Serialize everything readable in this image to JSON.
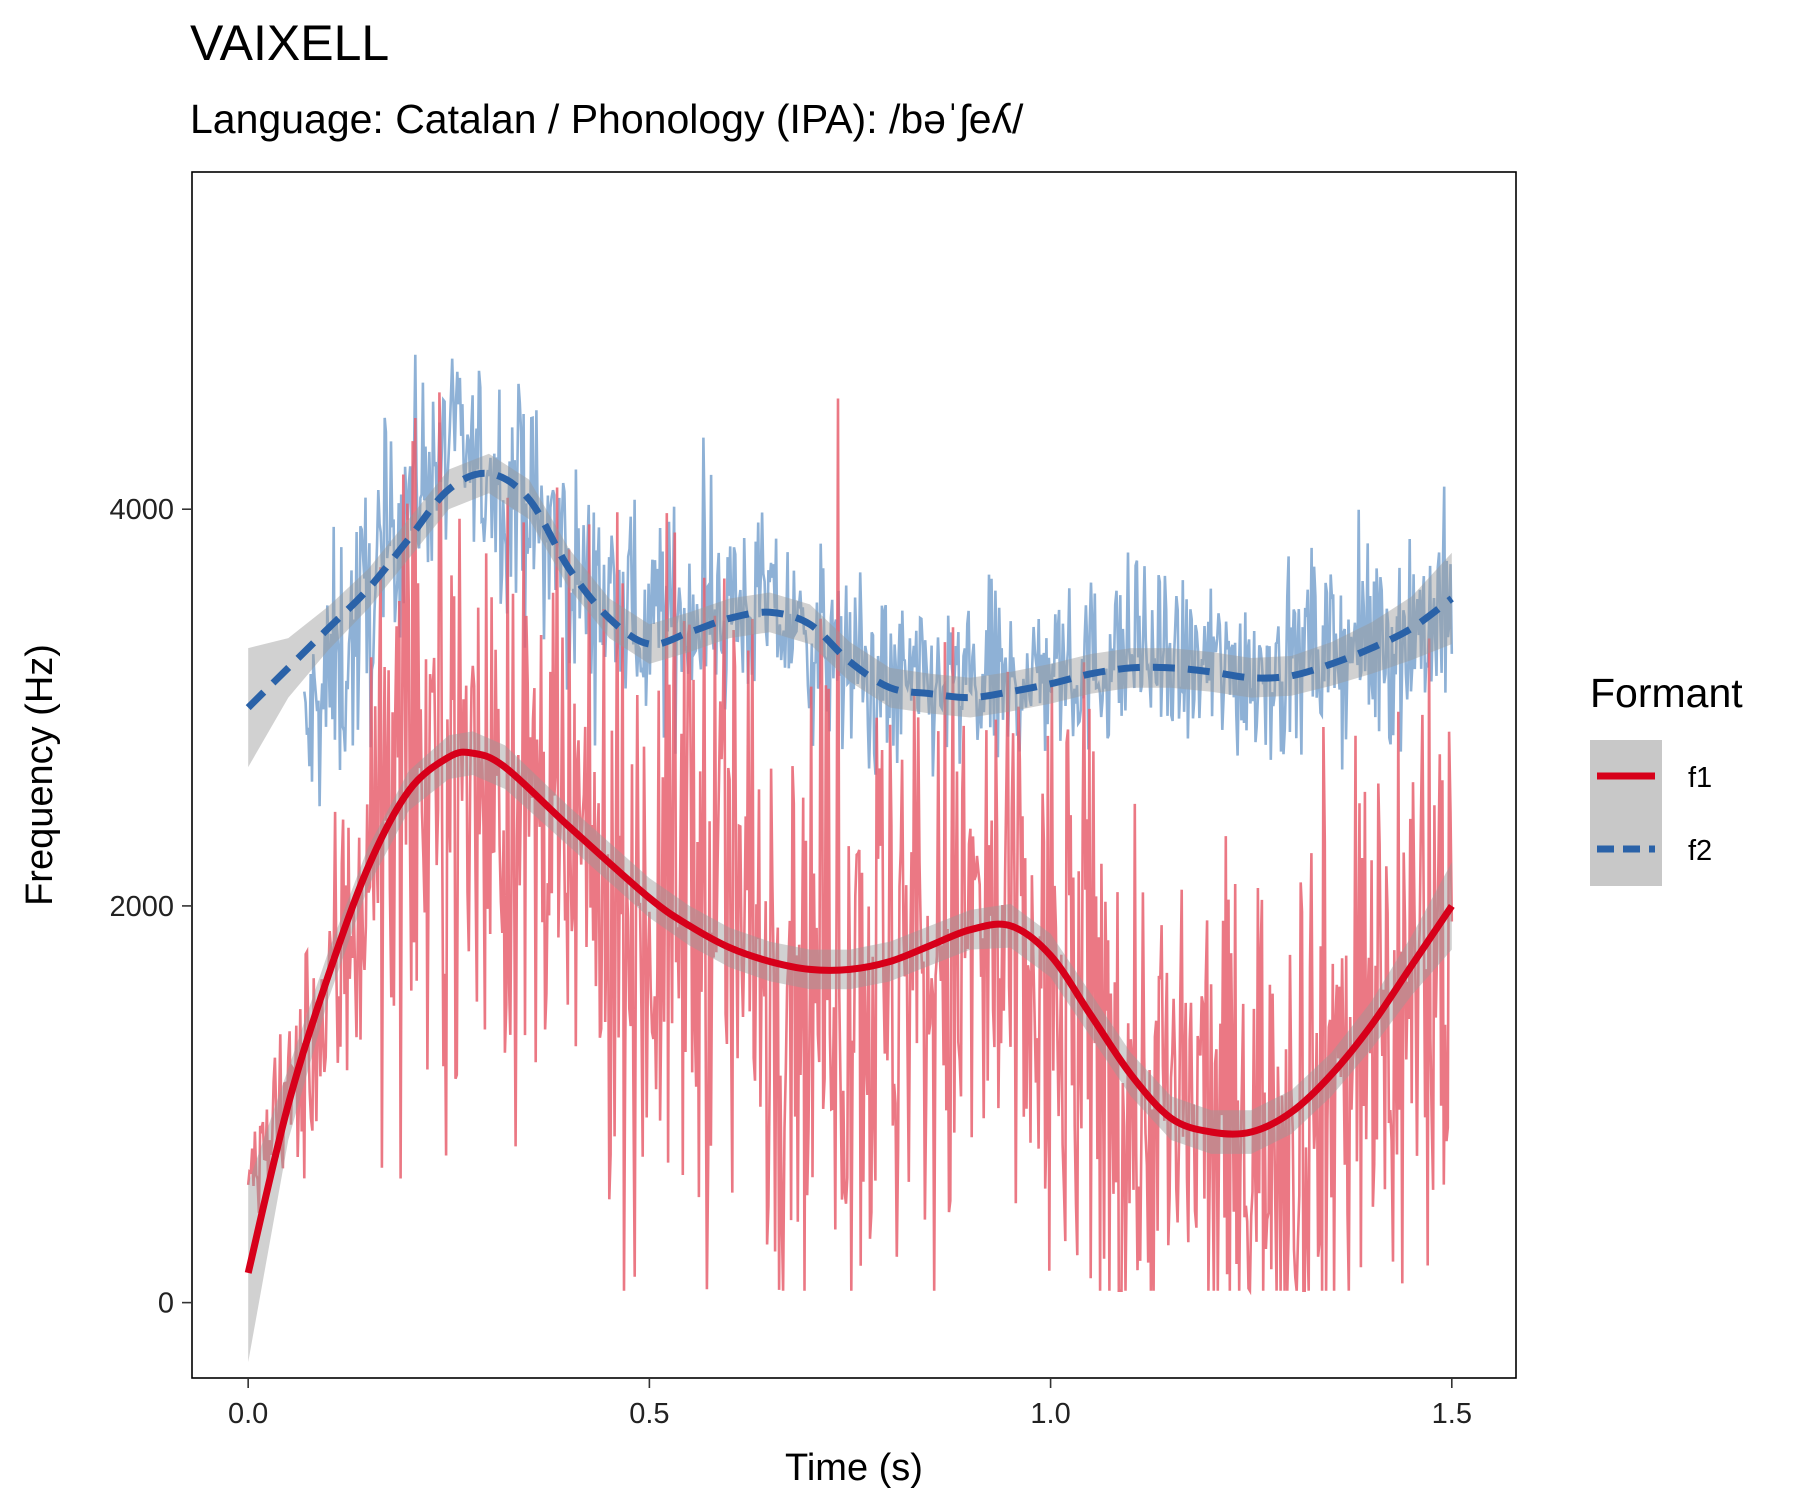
{
  "chart_data": {
    "type": "line",
    "title": "VAIXELL",
    "subtitle": "Language: Catalan / Phonology (IPA): /bəˈʃeʎ/",
    "xlabel": "Time (s)",
    "ylabel": "Frequency (Hz)",
    "xlim": [
      -0.07,
      1.58
    ],
    "ylim": [
      -380,
      5700
    ],
    "x_ticks": [
      0.0,
      0.5,
      1.0,
      1.5
    ],
    "x_tick_labels": [
      "0.0",
      "0.5",
      "1.0",
      "1.5"
    ],
    "y_ticks": [
      0,
      2000,
      4000
    ],
    "y_tick_labels": [
      "0",
      "2000",
      "4000"
    ],
    "grid": false,
    "legend": {
      "title": "Formant",
      "position": "right",
      "entries": [
        {
          "label": "f1",
          "color": "#d7001a",
          "linetype": "solid"
        },
        {
          "label": "f2",
          "color": "#2a62a8",
          "linetype": "dashed"
        }
      ]
    },
    "raw_series": [
      {
        "name": "f1",
        "color": "#e8606f",
        "description_level_points": {
          "x": [
            0.0,
            0.05,
            0.1,
            0.15,
            0.2,
            0.25,
            0.3,
            0.35,
            0.4,
            0.45,
            0.5,
            0.55,
            0.6,
            0.65,
            0.7,
            0.75,
            0.8,
            0.85,
            0.9,
            0.95,
            1.0,
            1.05,
            1.1,
            1.15,
            1.2,
            1.25,
            1.3,
            1.35,
            1.4,
            1.45,
            1.5
          ],
          "center": [
            600,
            1000,
            1500,
            2300,
            2600,
            2700,
            2600,
            2400,
            2200,
            2000,
            1900,
            2200,
            2000,
            1800,
            1700,
            1700,
            1600,
            1700,
            1800,
            1700,
            1500,
            1400,
            1000,
            900,
            900,
            900,
            1000,
            1200,
            1400,
            1600,
            1800
          ],
          "spread": [
            200,
            400,
            700,
            1200,
            1400,
            1400,
            1300,
            1300,
            1200,
            1300,
            1400,
            1700,
            1600,
            1500,
            1500,
            1500,
            1500,
            1500,
            1500,
            1500,
            1500,
            1500,
            1300,
            1200,
            1200,
            1200,
            1300,
            1400,
            1500,
            1600,
            1700
          ]
        }
      },
      {
        "name": "f2",
        "color": "#7aa3cf",
        "description_level_points": {
          "x": [
            0.07,
            0.1,
            0.15,
            0.2,
            0.25,
            0.3,
            0.35,
            0.4,
            0.45,
            0.5,
            0.55,
            0.6,
            0.65,
            0.7,
            0.75,
            0.8,
            0.85,
            0.9,
            0.95,
            1.0,
            1.05,
            1.1,
            1.15,
            1.2,
            1.25,
            1.3,
            1.35,
            1.4,
            1.45,
            1.5
          ],
          "center": [
            2800,
            3100,
            3500,
            4100,
            4300,
            4200,
            4000,
            3700,
            3500,
            3400,
            3500,
            3500,
            3500,
            3300,
            3200,
            3100,
            3100,
            3100,
            3100,
            3200,
            3200,
            3300,
            3200,
            3200,
            3200,
            3200,
            3300,
            3300,
            3400,
            3500
          ],
          "spread": [
            500,
            600,
            600,
            500,
            400,
            500,
            500,
            500,
            450,
            450,
            500,
            450,
            400,
            400,
            400,
            400,
            400,
            400,
            400,
            400,
            400,
            400,
            400,
            400,
            400,
            450,
            450,
            450,
            500,
            500
          ]
        }
      }
    ],
    "smooth_series": [
      {
        "name": "f1",
        "color": "#d7001a",
        "linetype": "solid",
        "x": [
          0.0,
          0.05,
          0.1,
          0.15,
          0.2,
          0.25,
          0.28,
          0.32,
          0.4,
          0.5,
          0.55,
          0.6,
          0.65,
          0.7,
          0.75,
          0.8,
          0.85,
          0.9,
          0.95,
          1.0,
          1.05,
          1.1,
          1.15,
          1.2,
          1.25,
          1.3,
          1.35,
          1.4,
          1.45,
          1.5
        ],
        "y": [
          150,
          1000,
          1650,
          2200,
          2580,
          2750,
          2770,
          2700,
          2400,
          2040,
          1900,
          1790,
          1720,
          1680,
          1680,
          1720,
          1800,
          1880,
          1900,
          1750,
          1450,
          1150,
          930,
          860,
          860,
          960,
          1150,
          1400,
          1700,
          2000
        ],
        "band_halfwidth": [
          450,
          180,
          120,
          100,
          100,
          110,
          110,
          110,
          100,
          100,
          100,
          100,
          100,
          100,
          100,
          100,
          100,
          100,
          110,
          110,
          110,
          110,
          110,
          110,
          110,
          110,
          110,
          120,
          150,
          220
        ]
      },
      {
        "name": "f2",
        "color": "#2a62a8",
        "linetype": "dashed",
        "x": [
          0.0,
          0.05,
          0.1,
          0.15,
          0.2,
          0.25,
          0.3,
          0.35,
          0.4,
          0.45,
          0.5,
          0.55,
          0.6,
          0.65,
          0.7,
          0.75,
          0.8,
          0.85,
          0.9,
          0.95,
          1.0,
          1.05,
          1.1,
          1.15,
          1.2,
          1.25,
          1.3,
          1.35,
          1.4,
          1.45,
          1.5
        ],
        "y": [
          3000,
          3200,
          3400,
          3600,
          3850,
          4100,
          4180,
          4050,
          3700,
          3450,
          3320,
          3380,
          3450,
          3480,
          3420,
          3230,
          3100,
          3070,
          3050,
          3080,
          3120,
          3170,
          3200,
          3200,
          3180,
          3150,
          3160,
          3220,
          3300,
          3400,
          3550
        ],
        "band_halfwidth": [
          300,
          150,
          110,
          100,
          100,
          100,
          100,
          100,
          100,
          100,
          100,
          100,
          100,
          100,
          100,
          100,
          100,
          100,
          100,
          100,
          100,
          100,
          100,
          100,
          100,
          100,
          100,
          110,
          130,
          160,
          230
        ]
      }
    ]
  }
}
